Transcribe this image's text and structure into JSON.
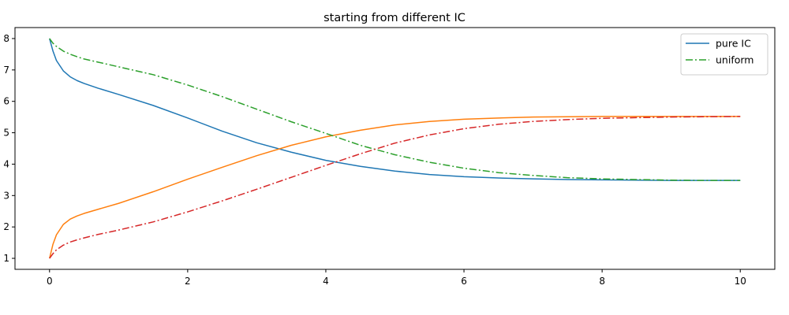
{
  "chart_data": {
    "type": "line",
    "title": "starting from different IC",
    "xlabel": "",
    "ylabel": "",
    "xlim": [
      -0.5,
      10.5
    ],
    "ylim": [
      0.65,
      8.35
    ],
    "xticks": [
      0,
      2,
      4,
      6,
      8,
      10
    ],
    "yticks": [
      1,
      2,
      3,
      4,
      5,
      6,
      7,
      8
    ],
    "grid": false,
    "legend": {
      "placement": "top-right",
      "entries": [
        "pure IC",
        "uniform"
      ]
    },
    "series": [
      {
        "name": "pure IC",
        "color": "#1f77b4",
        "style": "solid",
        "x": [
          0,
          0.05,
          0.1,
          0.2,
          0.3,
          0.4,
          0.5,
          0.7,
          1.0,
          1.5,
          2.0,
          2.5,
          3.0,
          3.5,
          4.0,
          4.5,
          5.0,
          5.5,
          6.0,
          6.5,
          7.0,
          7.5,
          8.0,
          8.5,
          9.0,
          9.5,
          10.0
        ],
        "y": [
          8.0,
          7.6,
          7.3,
          6.97,
          6.78,
          6.66,
          6.57,
          6.42,
          6.22,
          5.87,
          5.47,
          5.05,
          4.68,
          4.38,
          4.12,
          3.93,
          3.78,
          3.67,
          3.6,
          3.56,
          3.53,
          3.51,
          3.5,
          3.49,
          3.48,
          3.48,
          3.48
        ]
      },
      {
        "name": "",
        "color": "#ff7f0e",
        "style": "solid",
        "x": [
          0,
          0.05,
          0.1,
          0.2,
          0.3,
          0.4,
          0.5,
          0.7,
          1.0,
          1.5,
          2.0,
          2.5,
          3.0,
          3.5,
          4.0,
          4.5,
          5.0,
          5.5,
          6.0,
          6.5,
          7.0,
          7.5,
          8.0,
          8.5,
          9.0,
          9.5,
          10.0
        ],
        "y": [
          1.0,
          1.45,
          1.75,
          2.08,
          2.25,
          2.35,
          2.43,
          2.56,
          2.75,
          3.12,
          3.52,
          3.9,
          4.27,
          4.6,
          4.87,
          5.08,
          5.25,
          5.36,
          5.43,
          5.47,
          5.5,
          5.51,
          5.52,
          5.52,
          5.52,
          5.52,
          5.52
        ]
      },
      {
        "name": "uniform",
        "color": "#2ca02c",
        "style": "dashdot",
        "x": [
          0,
          0.05,
          0.1,
          0.2,
          0.3,
          0.4,
          0.5,
          0.7,
          1.0,
          1.5,
          2.0,
          2.5,
          3.0,
          3.5,
          4.0,
          4.5,
          5.0,
          5.5,
          6.0,
          6.5,
          7.0,
          7.5,
          8.0,
          8.5,
          9.0,
          9.5,
          10.0
        ],
        "y": [
          8.0,
          7.85,
          7.75,
          7.6,
          7.5,
          7.42,
          7.35,
          7.25,
          7.1,
          6.85,
          6.52,
          6.15,
          5.75,
          5.35,
          4.98,
          4.6,
          4.3,
          4.06,
          3.87,
          3.73,
          3.64,
          3.57,
          3.53,
          3.51,
          3.49,
          3.48,
          3.48
        ]
      },
      {
        "name": "",
        "color": "#d62728",
        "style": "dashdot",
        "x": [
          0,
          0.05,
          0.1,
          0.2,
          0.3,
          0.4,
          0.5,
          0.7,
          1.0,
          1.5,
          2.0,
          2.5,
          3.0,
          3.5,
          4.0,
          4.5,
          5.0,
          5.5,
          6.0,
          6.5,
          7.0,
          7.5,
          8.0,
          8.5,
          9.0,
          9.5,
          10.0
        ],
        "y": [
          1.0,
          1.15,
          1.27,
          1.42,
          1.52,
          1.59,
          1.65,
          1.76,
          1.9,
          2.16,
          2.48,
          2.83,
          3.2,
          3.58,
          3.96,
          4.33,
          4.67,
          4.93,
          5.13,
          5.27,
          5.36,
          5.42,
          5.46,
          5.48,
          5.5,
          5.51,
          5.52
        ]
      }
    ]
  }
}
